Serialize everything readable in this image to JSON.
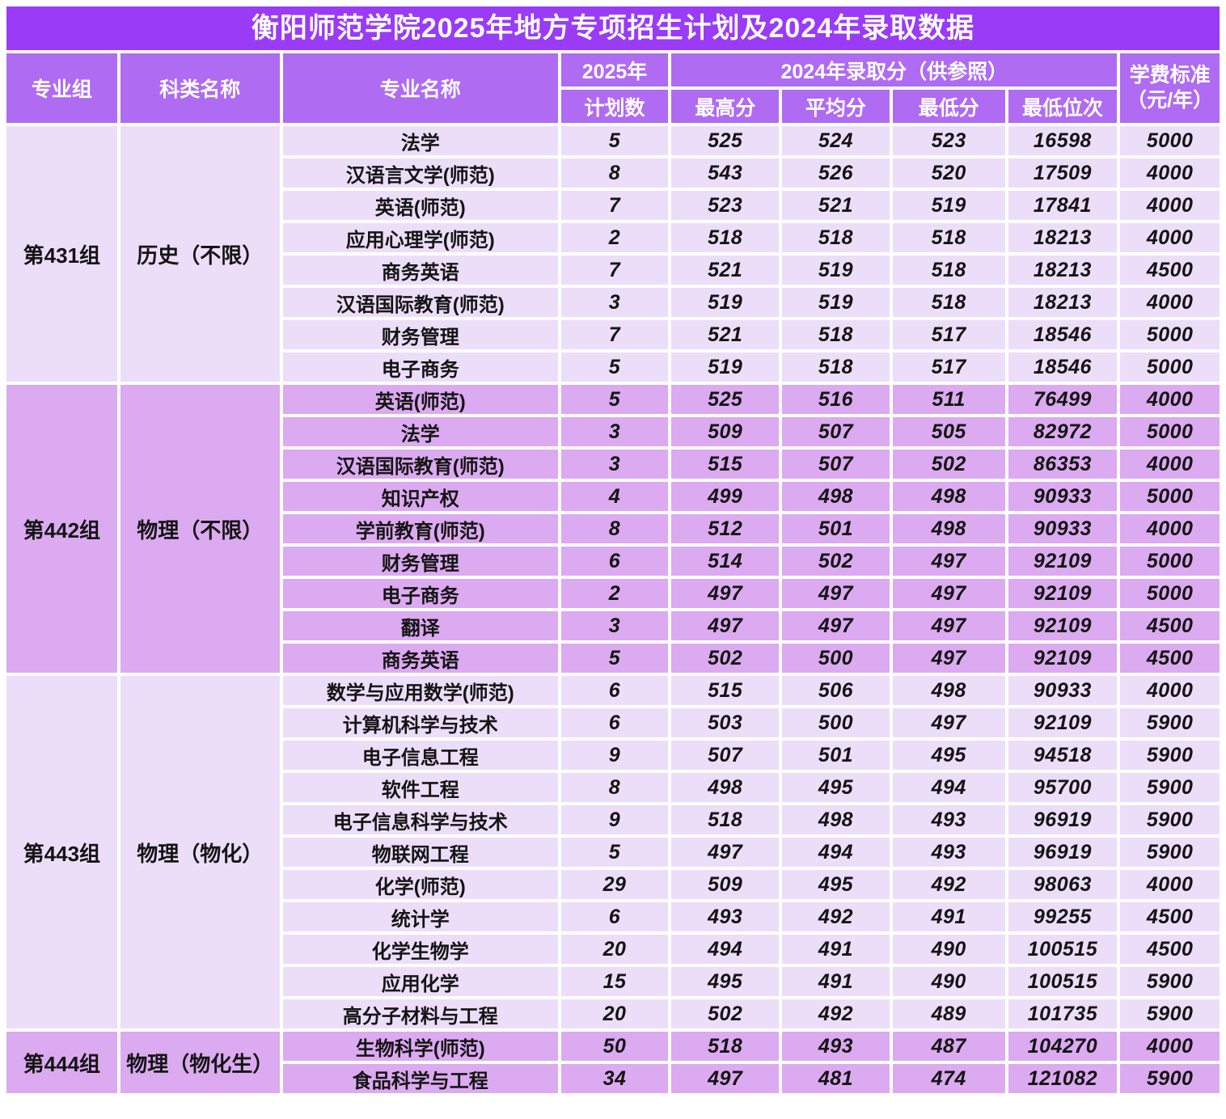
{
  "title": "衡阳师范学院2025年地方专项招生计划及2024年录取数据",
  "colors": {
    "title_bar": "#9a3bf7",
    "header_cell": "#af6bf2",
    "row_band_light": "#ecdef8",
    "row_band_dark": "#dcaaf0",
    "gap": "#ffffff",
    "header_text": "#ffffff",
    "body_text": "#141414"
  },
  "header": {
    "col_group": "专业组",
    "col_category": "科类名称",
    "col_major": "专业名称",
    "col_year_2025": "2025年",
    "col_plan": "计划数",
    "col_scores_2024": "2024年录取分（供参照）",
    "col_max": "最高分",
    "col_avg": "平均分",
    "col_min": "最低分",
    "col_rank": "最低位次",
    "col_tuition_line1": "学费标准",
    "col_tuition_line2": "（元/年）"
  },
  "groups": [
    {
      "group": "第431组",
      "category": "历史（不限）",
      "band": "light",
      "rows": [
        {
          "major": "法学",
          "plan": "5",
          "max": "525",
          "avg": "524",
          "min": "523",
          "rank": "16598",
          "tuition": "5000"
        },
        {
          "major": "汉语言文学(师范)",
          "plan": "8",
          "max": "543",
          "avg": "526",
          "min": "520",
          "rank": "17509",
          "tuition": "4000"
        },
        {
          "major": "英语(师范)",
          "plan": "7",
          "max": "523",
          "avg": "521",
          "min": "519",
          "rank": "17841",
          "tuition": "4000"
        },
        {
          "major": "应用心理学(师范)",
          "plan": "2",
          "max": "518",
          "avg": "518",
          "min": "518",
          "rank": "18213",
          "tuition": "4000"
        },
        {
          "major": "商务英语",
          "plan": "7",
          "max": "521",
          "avg": "519",
          "min": "518",
          "rank": "18213",
          "tuition": "4500"
        },
        {
          "major": "汉语国际教育(师范)",
          "plan": "3",
          "max": "519",
          "avg": "519",
          "min": "518",
          "rank": "18213",
          "tuition": "4000"
        },
        {
          "major": "财务管理",
          "plan": "7",
          "max": "521",
          "avg": "518",
          "min": "517",
          "rank": "18546",
          "tuition": "5000"
        },
        {
          "major": "电子商务",
          "plan": "5",
          "max": "519",
          "avg": "518",
          "min": "517",
          "rank": "18546",
          "tuition": "5000"
        }
      ]
    },
    {
      "group": "第442组",
      "category": "物理（不限）",
      "band": "dark",
      "rows": [
        {
          "major": "英语(师范)",
          "plan": "5",
          "max": "525",
          "avg": "516",
          "min": "511",
          "rank": "76499",
          "tuition": "4000"
        },
        {
          "major": "法学",
          "plan": "3",
          "max": "509",
          "avg": "507",
          "min": "505",
          "rank": "82972",
          "tuition": "5000"
        },
        {
          "major": "汉语国际教育(师范)",
          "plan": "3",
          "max": "515",
          "avg": "507",
          "min": "502",
          "rank": "86353",
          "tuition": "4000"
        },
        {
          "major": "知识产权",
          "plan": "4",
          "max": "499",
          "avg": "498",
          "min": "498",
          "rank": "90933",
          "tuition": "5000"
        },
        {
          "major": "学前教育(师范)",
          "plan": "8",
          "max": "512",
          "avg": "501",
          "min": "498",
          "rank": "90933",
          "tuition": "4000"
        },
        {
          "major": "财务管理",
          "plan": "6",
          "max": "514",
          "avg": "502",
          "min": "497",
          "rank": "92109",
          "tuition": "5000"
        },
        {
          "major": "电子商务",
          "plan": "2",
          "max": "497",
          "avg": "497",
          "min": "497",
          "rank": "92109",
          "tuition": "5000"
        },
        {
          "major": "翻译",
          "plan": "3",
          "max": "497",
          "avg": "497",
          "min": "497",
          "rank": "92109",
          "tuition": "4500"
        },
        {
          "major": "商务英语",
          "plan": "5",
          "max": "502",
          "avg": "500",
          "min": "497",
          "rank": "92109",
          "tuition": "4500"
        }
      ]
    },
    {
      "group": "第443组",
      "category": "物理（物化）",
      "band": "light",
      "rows": [
        {
          "major": "数学与应用数学(师范)",
          "plan": "6",
          "max": "515",
          "avg": "506",
          "min": "498",
          "rank": "90933",
          "tuition": "4000"
        },
        {
          "major": "计算机科学与技术",
          "plan": "6",
          "max": "503",
          "avg": "500",
          "min": "497",
          "rank": "92109",
          "tuition": "5900"
        },
        {
          "major": "电子信息工程",
          "plan": "9",
          "max": "507",
          "avg": "501",
          "min": "495",
          "rank": "94518",
          "tuition": "5900"
        },
        {
          "major": "软件工程",
          "plan": "8",
          "max": "498",
          "avg": "495",
          "min": "494",
          "rank": "95700",
          "tuition": "5900"
        },
        {
          "major": "电子信息科学与技术",
          "plan": "9",
          "max": "518",
          "avg": "498",
          "min": "493",
          "rank": "96919",
          "tuition": "5900"
        },
        {
          "major": "物联网工程",
          "plan": "5",
          "max": "497",
          "avg": "494",
          "min": "493",
          "rank": "96919",
          "tuition": "5900"
        },
        {
          "major": "化学(师范)",
          "plan": "29",
          "max": "509",
          "avg": "495",
          "min": "492",
          "rank": "98063",
          "tuition": "4000"
        },
        {
          "major": "统计学",
          "plan": "6",
          "max": "493",
          "avg": "492",
          "min": "491",
          "rank": "99255",
          "tuition": "4500"
        },
        {
          "major": "化学生物学",
          "plan": "20",
          "max": "494",
          "avg": "491",
          "min": "490",
          "rank": "100515",
          "tuition": "4500"
        },
        {
          "major": "应用化学",
          "plan": "15",
          "max": "495",
          "avg": "491",
          "min": "490",
          "rank": "100515",
          "tuition": "5900"
        },
        {
          "major": "高分子材料与工程",
          "plan": "20",
          "max": "502",
          "avg": "492",
          "min": "489",
          "rank": "101735",
          "tuition": "5900"
        }
      ]
    },
    {
      "group": "第444组",
      "category": "物理（物化生）",
      "band": "dark",
      "rows": [
        {
          "major": "生物科学(师范)",
          "plan": "50",
          "max": "518",
          "avg": "493",
          "min": "487",
          "rank": "104270",
          "tuition": "4000"
        },
        {
          "major": "食品科学与工程",
          "plan": "34",
          "max": "497",
          "avg": "481",
          "min": "474",
          "rank": "121082",
          "tuition": "5900"
        }
      ]
    }
  ]
}
